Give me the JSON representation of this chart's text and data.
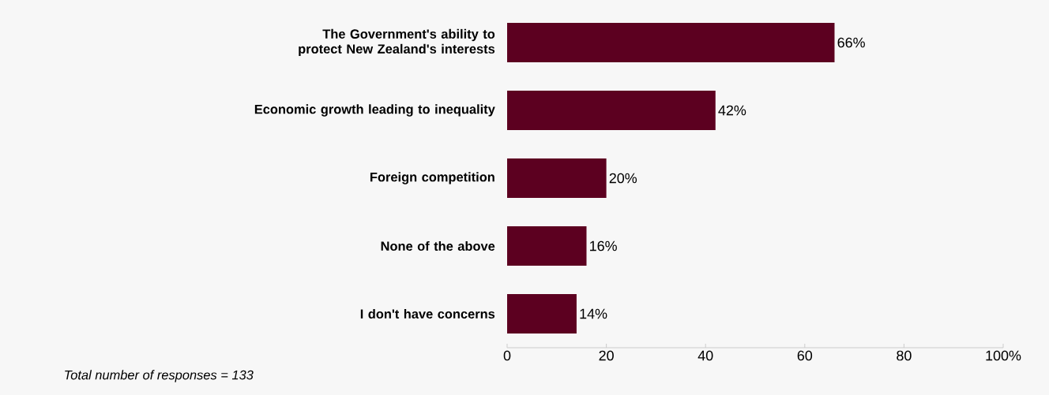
{
  "chart_data": {
    "type": "bar",
    "orientation": "horizontal",
    "categories": [
      "The Government's ability to protect New Zealand's interests",
      "Economic growth leading to inequality",
      "Foreign competition",
      "None of the above",
      "I don't have concerns"
    ],
    "values": [
      66,
      42,
      20,
      16,
      14
    ],
    "value_labels": [
      "66%",
      "42%",
      "20%",
      "16%",
      "14%"
    ],
    "color": "#5c0020",
    "xlim": [
      0,
      100
    ],
    "xticks": [
      0,
      20,
      40,
      60,
      80,
      {
        "value": 100,
        "label": "100%"
      }
    ],
    "grid": false,
    "annotations": [
      "Total number of responses = 133"
    ]
  }
}
